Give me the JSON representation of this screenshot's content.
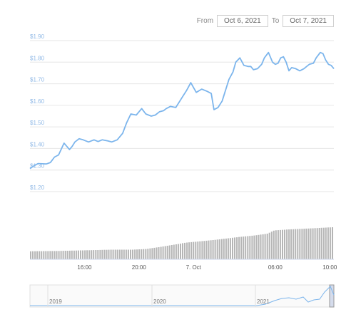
{
  "range": {
    "from_label": "From",
    "from_value": "Oct 6, 2021",
    "to_label": "To",
    "to_value": "Oct 7, 2021"
  },
  "colors": {
    "line": "#7cb5ec",
    "grid": "#e6e6e6",
    "volume": "#b5b5b5",
    "y_tick": "#8fb8e6"
  },
  "chart_data": {
    "type": "line",
    "title": "",
    "ylabel": "",
    "ylim": [
      1.2,
      1.9
    ],
    "y_ticks": [
      "$1.90",
      "$1.80",
      "$1.70",
      "$1.60",
      "$1.50",
      "$1.40",
      "$1.30",
      "$1.20"
    ],
    "y_tick_values": [
      1.9,
      1.8,
      1.7,
      1.6,
      1.5,
      1.4,
      1.3,
      1.2
    ],
    "xlim_hours": [
      12.0,
      34.3
    ],
    "x_ticks": [
      {
        "label": "16:00",
        "hour": 16
      },
      {
        "label": "20:00",
        "hour": 20
      },
      {
        "label": "7. Oct",
        "hour": 24
      },
      {
        "label": "06:00",
        "hour": 30
      },
      {
        "label": "10:00",
        "hour": 34
      }
    ],
    "price_x_hours": [
      12.0,
      12.3,
      12.6,
      12.9,
      13.2,
      13.5,
      13.8,
      14.1,
      14.5,
      14.9,
      15.1,
      15.3,
      15.6,
      15.9,
      16.3,
      16.7,
      17.0,
      17.3,
      17.7,
      18.0,
      18.4,
      18.8,
      19.1,
      19.4,
      19.8,
      20.2,
      20.5,
      20.9,
      21.2,
      21.5,
      21.8,
      22.0,
      22.3,
      22.7,
      23.1,
      23.5,
      23.8,
      24.2,
      24.6,
      25.0,
      25.3,
      25.5,
      25.8,
      26.1,
      26.3,
      26.6,
      26.9,
      27.1,
      27.4,
      27.7,
      28.0,
      28.2,
      28.4,
      28.7,
      29.0,
      29.2,
      29.5,
      29.8,
      30.0,
      30.2,
      30.4,
      30.6,
      30.8,
      31.0,
      31.2,
      31.5,
      31.8,
      32.1,
      32.3,
      32.5,
      32.8,
      33.0,
      33.3,
      33.5,
      33.7,
      33.9,
      34.1,
      34.3
    ],
    "price_values": [
      1.307,
      1.32,
      1.33,
      1.329,
      1.328,
      1.335,
      1.36,
      1.37,
      1.425,
      1.395,
      1.41,
      1.43,
      1.445,
      1.44,
      1.43,
      1.44,
      1.432,
      1.44,
      1.435,
      1.43,
      1.44,
      1.47,
      1.52,
      1.56,
      1.555,
      1.585,
      1.56,
      1.55,
      1.555,
      1.57,
      1.575,
      1.585,
      1.595,
      1.59,
      1.63,
      1.67,
      1.705,
      1.66,
      1.675,
      1.665,
      1.655,
      1.58,
      1.59,
      1.62,
      1.66,
      1.72,
      1.755,
      1.8,
      1.82,
      1.785,
      1.78,
      1.78,
      1.765,
      1.77,
      1.79,
      1.82,
      1.845,
      1.8,
      1.79,
      1.795,
      1.82,
      1.825,
      1.8,
      1.76,
      1.775,
      1.77,
      1.76,
      1.77,
      1.78,
      1.79,
      1.795,
      1.82,
      1.845,
      1.84,
      1.81,
      1.79,
      1.785,
      1.77
    ],
    "volume_x_hours": [
      12.0,
      14.0,
      16.0,
      18.0,
      19.5,
      20.5,
      21.5,
      22.5,
      23.5,
      24.5,
      25.5,
      26.5,
      27.5,
      28.5,
      29.5,
      30.0,
      31.0,
      32.0,
      33.0,
      34.3
    ],
    "volume_relative": [
      0.25,
      0.26,
      0.28,
      0.3,
      0.3,
      0.32,
      0.38,
      0.45,
      0.52,
      0.56,
      0.6,
      0.65,
      0.7,
      0.74,
      0.8,
      0.9,
      0.93,
      0.95,
      0.97,
      1.0
    ],
    "navigator": {
      "ticks": [
        "2019",
        "2020",
        "2021"
      ]
    }
  }
}
